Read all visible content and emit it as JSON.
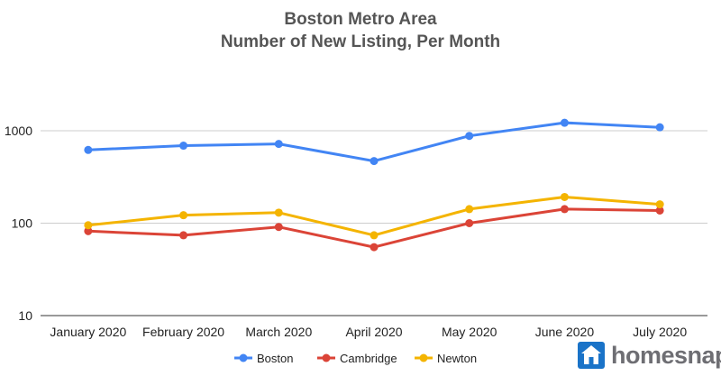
{
  "chart_data": {
    "type": "line",
    "title": "Boston Metro Area",
    "subtitle": "Number of New Listing, Per Month",
    "xlabel": "",
    "ylabel": "",
    "y_scale": "log",
    "ylim": [
      10,
      1500
    ],
    "y_ticks": [
      "10",
      "100",
      "1000"
    ],
    "categories": [
      "January 2020",
      "February 2020",
      "March 2020",
      "April 2020",
      "May 2020",
      "June 2020",
      "July 2020"
    ],
    "series": [
      {
        "name": "Boston",
        "color": "#4285f4",
        "values": [
          620,
          690,
          720,
          470,
          880,
          1220,
          1090
        ]
      },
      {
        "name": "Cambridge",
        "color": "#db4437",
        "values": [
          82,
          74,
          91,
          55,
          100,
          142,
          137
        ]
      },
      {
        "name": "Newton",
        "color": "#f4b400",
        "values": [
          95,
          122,
          130,
          74,
          142,
          192,
          160
        ]
      }
    ],
    "grid": true,
    "legend_position": "bottom"
  },
  "logo": {
    "text": "homesnap",
    "icon": "house-icon",
    "color": "#1a73c8"
  }
}
